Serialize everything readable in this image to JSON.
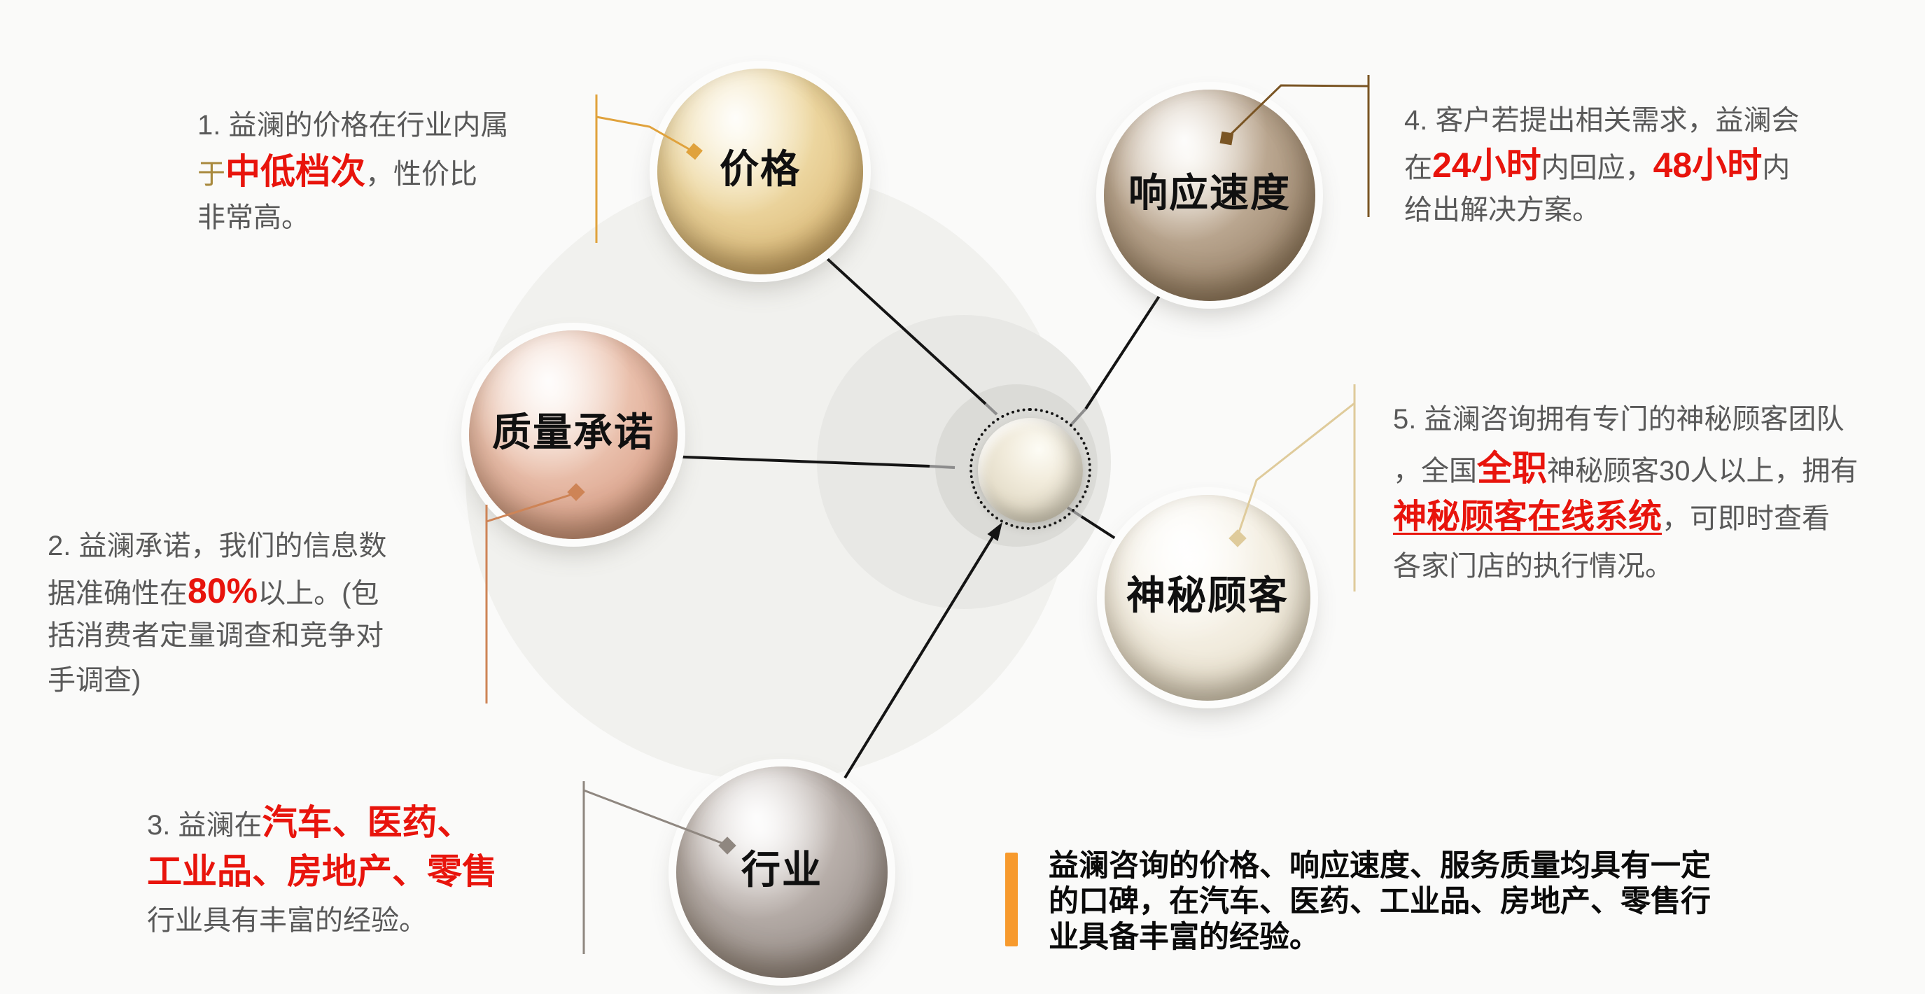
{
  "colors": {
    "background": "#fafaf9",
    "text_gray": "#595959",
    "accent_red": "#e8140c",
    "accent_tan": "#a8893d",
    "summary_bar_orange": "#f79a2d",
    "summary_text": "#0a0a0a",
    "connector_black": "#141414",
    "connector_gray": "#8c8c8c",
    "callout_gold": "#e0a23c",
    "callout_brown": "#7a5524",
    "callout_salmon": "#ce8456",
    "callout_tan": "#dfcb9b",
    "callout_gray": "#8f8780",
    "sphere_price_main": "#e3c689",
    "sphere_response_main": "#a8937b",
    "sphere_quality_main": "#e0ad97",
    "sphere_mystery_main": "#ece5d4",
    "sphere_industry_main": "#a69d98",
    "pearl_main": "#e6dfcc"
  },
  "spheres": {
    "price": {
      "label": "价格"
    },
    "response": {
      "label": "响应速度"
    },
    "quality": {
      "label": "质量承诺"
    },
    "mystery": {
      "label": "神秘顾客"
    },
    "industry": {
      "label": "行业"
    }
  },
  "notes": {
    "price": {
      "lines": [
        [
          {
            "t": "1. 益澜的价格在行业内属",
            "s": "gray"
          }
        ],
        [
          {
            "t": "于",
            "s": "tan"
          },
          {
            "t": "中低档次",
            "s": "red"
          },
          {
            "t": "，性价比",
            "s": "gray"
          }
        ],
        [
          {
            "t": "非常高。",
            "s": "gray"
          }
        ]
      ]
    },
    "quality": {
      "lines": [
        [
          {
            "t": "2. 益澜承诺，我们的信息数",
            "s": "gray"
          }
        ],
        [
          {
            "t": "据准确性在",
            "s": "gray"
          },
          {
            "t": "80%",
            "s": "red"
          },
          {
            "t": "以上。(包",
            "s": "gray"
          }
        ],
        [
          {
            "t": "括消费者定量调查和竞争对",
            "s": "gray"
          }
        ],
        [
          {
            "t": "手调查)",
            "s": "gray"
          }
        ]
      ]
    },
    "industry": {
      "lines": [
        [
          {
            "t": "3. 益澜在",
            "s": "gray"
          },
          {
            "t": "汽车、医药、",
            "s": "red"
          }
        ],
        [
          {
            "t": "工业品、房地产、零售",
            "s": "red"
          }
        ],
        [
          {
            "t": "行业具有丰富的经验。",
            "s": "gray"
          }
        ]
      ]
    },
    "response": {
      "lines": [
        [
          {
            "t": "4. 客户若提出相关需求，益澜会",
            "s": "gray"
          }
        ],
        [
          {
            "t": "在",
            "s": "gray"
          },
          {
            "t": "24小时",
            "s": "red"
          },
          {
            "t": "内回应，",
            "s": "gray"
          },
          {
            "t": "48小时",
            "s": "red"
          },
          {
            "t": "内",
            "s": "gray"
          }
        ],
        [
          {
            "t": "给出解决方案。",
            "s": "gray"
          }
        ]
      ]
    },
    "mystery": {
      "lines": [
        [
          {
            "t": "5. 益澜咨询拥有专门的神秘顾客团队",
            "s": "gray"
          }
        ],
        [
          {
            "t": "，全国",
            "s": "gray"
          },
          {
            "t": "全职",
            "s": "red"
          },
          {
            "t": "神秘顾客30人以上，拥有",
            "s": "gray"
          }
        ],
        [
          {
            "t": "神秘顾客在线系统",
            "s": "redu"
          },
          {
            "t": "，可即时查看",
            "s": "gray"
          }
        ],
        [
          {
            "t": "各家门店的执行情况。",
            "s": "gray"
          }
        ]
      ]
    }
  },
  "summary": {
    "lines": [
      "益澜咨询的价格、响应速度、服务质量均具有一定",
      "的口碑，在汽车、医药、工业品、房地产、零售行",
      "业具备丰富的经验。"
    ]
  }
}
